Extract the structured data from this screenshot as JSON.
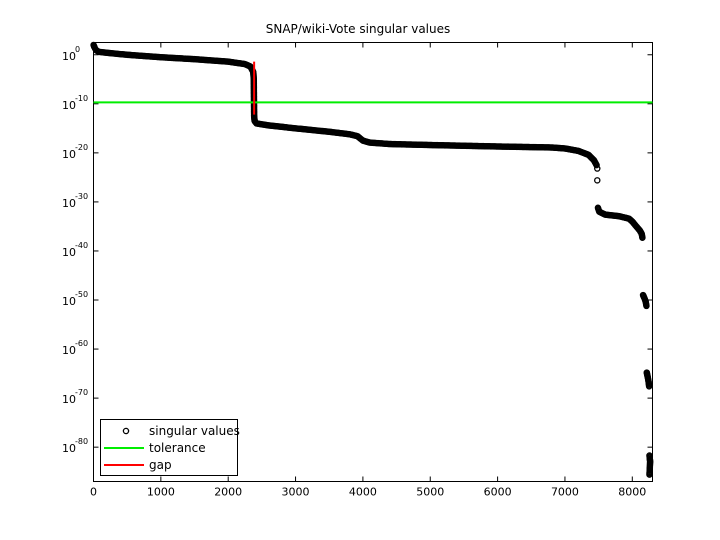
{
  "chart_data": {
    "type": "scatter",
    "title": "SNAP/wiki-Vote singular values",
    "xlabel": "",
    "ylabel": "",
    "xlim": [
      0,
      8300
    ],
    "ylim_log10": [
      -87,
      2.5
    ],
    "y_scale": "log",
    "grid": false,
    "legend_position": "bottom-left",
    "x_ticks": [
      {
        "value": 0,
        "label": "0"
      },
      {
        "value": 1000,
        "label": "1000"
      },
      {
        "value": 2000,
        "label": "2000"
      },
      {
        "value": 3000,
        "label": "3000"
      },
      {
        "value": 4000,
        "label": "4000"
      },
      {
        "value": 5000,
        "label": "5000"
      },
      {
        "value": 6000,
        "label": "6000"
      },
      {
        "value": 7000,
        "label": "7000"
      },
      {
        "value": 8000,
        "label": "8000"
      }
    ],
    "y_ticks": [
      {
        "exponent": 0,
        "base": "10",
        "exp": "0"
      },
      {
        "exponent": -10,
        "base": "10",
        "exp": "-10"
      },
      {
        "exponent": -20,
        "base": "10",
        "exp": "-20"
      },
      {
        "exponent": -30,
        "base": "10",
        "exp": "-30"
      },
      {
        "exponent": -40,
        "base": "10",
        "exp": "-40"
      },
      {
        "exponent": -50,
        "base": "10",
        "exp": "-50"
      },
      {
        "exponent": -60,
        "base": "10",
        "exp": "-60"
      },
      {
        "exponent": -70,
        "base": "10",
        "exp": "-70"
      },
      {
        "exponent": -80,
        "base": "10",
        "exp": "-80"
      }
    ],
    "series": [
      {
        "name": "singular values",
        "marker": "circle-open",
        "color": "#000000",
        "log10_curve": [
          [
            1,
            2.0
          ],
          [
            15,
            1.5
          ],
          [
            40,
            0.9
          ],
          [
            80,
            0.6
          ],
          [
            200,
            0.4
          ],
          [
            500,
            0.0
          ],
          [
            1000,
            -0.5
          ],
          [
            1500,
            -0.9
          ],
          [
            2000,
            -1.4
          ],
          [
            2250,
            -1.9
          ],
          [
            2330,
            -2.4
          ],
          [
            2372,
            -3.5
          ],
          [
            2380,
            -5.0
          ],
          [
            2385,
            -12.5
          ],
          [
            2392,
            -13.5
          ],
          [
            2420,
            -14.0
          ],
          [
            2600,
            -14.4
          ],
          [
            3000,
            -15.0
          ],
          [
            3500,
            -15.7
          ],
          [
            3800,
            -16.2
          ],
          [
            3920,
            -16.6
          ],
          [
            4000,
            -17.5
          ],
          [
            4100,
            -17.9
          ],
          [
            4400,
            -18.2
          ],
          [
            5000,
            -18.4
          ],
          [
            6000,
            -18.7
          ],
          [
            6800,
            -18.9
          ],
          [
            7000,
            -19.1
          ],
          [
            7200,
            -19.6
          ],
          [
            7350,
            -20.4
          ],
          [
            7430,
            -21.5
          ],
          [
            7470,
            -22.5
          ]
        ],
        "log10_isolated": [
          [
            7480,
            -23.2
          ],
          [
            7480,
            -25.6
          ]
        ],
        "log10_segments": [
          [
            [
              7490,
              -31.2
            ],
            [
              7510,
              -32.0
            ],
            [
              7600,
              -32.6
            ],
            [
              7800,
              -32.9
            ],
            [
              7950,
              -33.4
            ],
            [
              8000,
              -34.0
            ],
            [
              8060,
              -35.0
            ],
            [
              8110,
              -35.8
            ],
            [
              8140,
              -36.5
            ],
            [
              8150,
              -37.3
            ]
          ],
          [
            [
              8160,
              -49.0
            ],
            [
              8185,
              -49.8
            ],
            [
              8200,
              -50.4
            ],
            [
              8210,
              -51.2
            ]
          ],
          [
            [
              8215,
              -64.8
            ],
            [
              8230,
              -65.8
            ],
            [
              8240,
              -66.5
            ],
            [
              8250,
              -67.6
            ]
          ],
          [
            [
              8255,
              -81.7
            ],
            [
              8260,
              -82.4
            ],
            [
              8265,
              -82.9
            ],
            [
              8255,
              -85.6
            ]
          ]
        ]
      },
      {
        "name": "tolerance",
        "type": "line",
        "color": "#00ee00",
        "log10_value": -9.7
      },
      {
        "name": "gap",
        "type": "line",
        "color": "#ff0000",
        "x": 2385,
        "log10_range": [
          -12.2,
          -1.4
        ]
      }
    ]
  }
}
